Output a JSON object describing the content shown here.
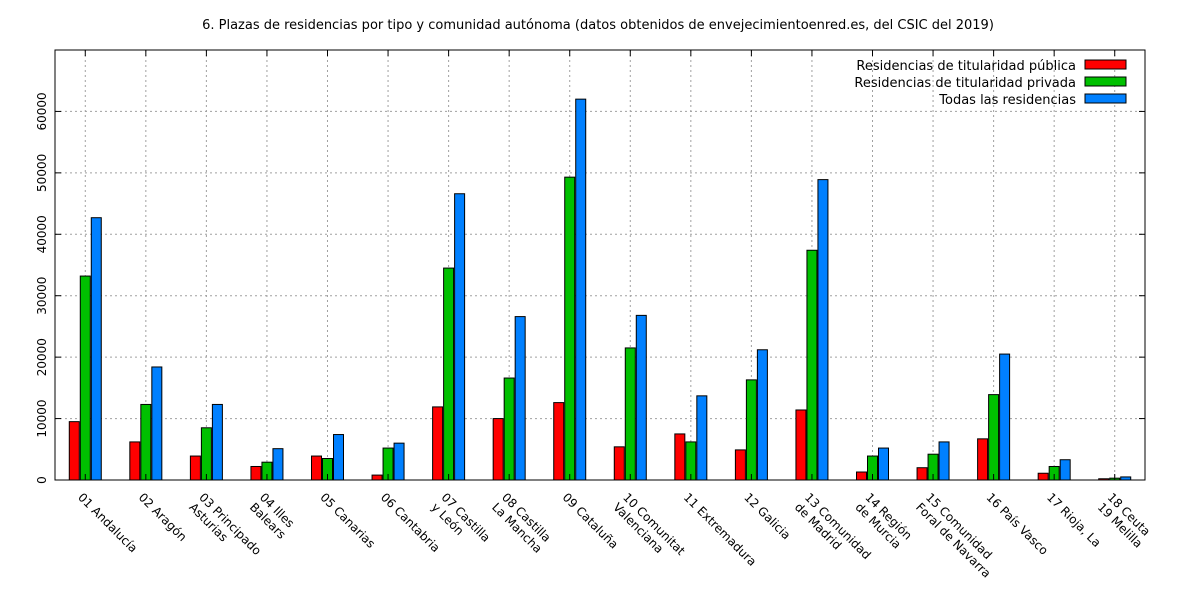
{
  "chart_data": {
    "type": "bar",
    "title": "6. Plazas de residencias por tipo y comunidad autónoma (datos obtenidos de envejecimientoenred.es, del CSIC del 2019)",
    "xlabel": "",
    "ylabel": "",
    "ylim": [
      0,
      70000
    ],
    "yticks": [
      0,
      10000,
      20000,
      30000,
      40000,
      50000,
      60000
    ],
    "grid": true,
    "legend_position": "top-right",
    "categories": [
      [
        "01 Andalucía"
      ],
      [
        "02 Aragón"
      ],
      [
        "03 Principado",
        "Asturias"
      ],
      [
        "04 Illes",
        "Balears"
      ],
      [
        "05 Canarias"
      ],
      [
        "06 Cantabria"
      ],
      [
        "07 Castilla",
        "y León"
      ],
      [
        "08 Castilla",
        "La Mancha"
      ],
      [
        "09 Cataluña"
      ],
      [
        "10 Comunitat",
        "Valenciana"
      ],
      [
        "11 Extremadura"
      ],
      [
        "12 Galicia"
      ],
      [
        "13 Comunidad",
        "de Madrid"
      ],
      [
        "14 Región",
        "de Murcia"
      ],
      [
        "15 Comunidad",
        "Foral de Navarra"
      ],
      [
        "16 País Vasco"
      ],
      [
        "17 Rioja, La"
      ],
      [
        "18 Ceuta",
        "19 Melilla"
      ]
    ],
    "series": [
      {
        "name": "Residencias de titularidad pública",
        "color": "#ff0000",
        "values": [
          9500,
          6200,
          3900,
          2200,
          3900,
          800,
          11900,
          10000,
          12600,
          5400,
          7500,
          4900,
          11400,
          1300,
          2000,
          6700,
          1100,
          200
        ]
      },
      {
        "name": "Residencias de titularidad privada",
        "color": "#00c000",
        "values": [
          33200,
          12300,
          8500,
          2900,
          3500,
          5200,
          34500,
          16600,
          49300,
          21500,
          6200,
          16300,
          37400,
          3900,
          4200,
          13900,
          2200,
          300
        ]
      },
      {
        "name": "Todas las residencias",
        "color": "#0080ff",
        "values": [
          42700,
          18400,
          12300,
          5100,
          7400,
          6000,
          46600,
          26600,
          62000,
          26800,
          13700,
          21200,
          48900,
          5200,
          6200,
          20500,
          3300,
          500
        ]
      }
    ]
  }
}
